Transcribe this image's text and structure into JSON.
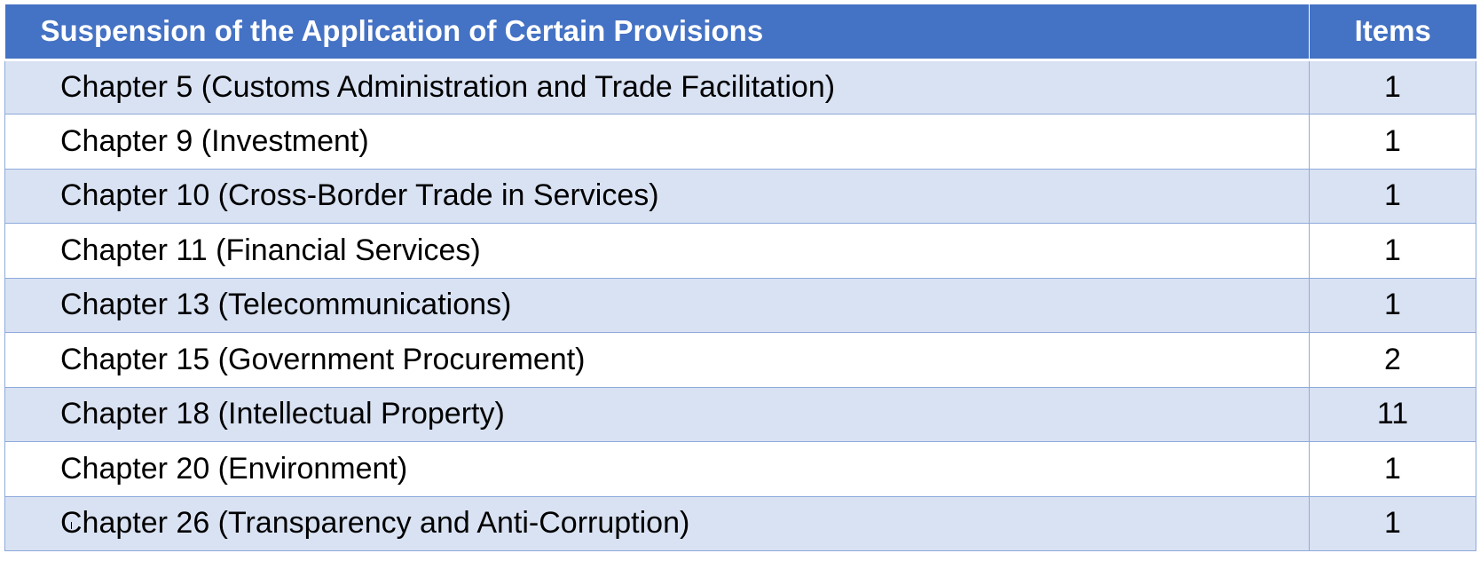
{
  "table": {
    "header": {
      "title": "Suspension of the Application of Certain Provisions",
      "items": "Items"
    },
    "rows": [
      {
        "chapter": "Chapter 5 (Customs Administration and Trade Facilitation)",
        "items": "1"
      },
      {
        "chapter": "Chapter 9 (Investment)",
        "items": "1"
      },
      {
        "chapter": "Chapter 10 (Cross-Border Trade in Services)",
        "items": "1"
      },
      {
        "chapter": "Chapter 11 (Financial Services)",
        "items": "1"
      },
      {
        "chapter": "Chapter 13 (Telecommunications)",
        "items": "1"
      },
      {
        "chapter": "Chapter 15 (Government Procurement)",
        "items": "2"
      },
      {
        "chapter": "Chapter 18 (Intellectual Property)",
        "items": "11"
      },
      {
        "chapter": "Chapter 20 (Environment)",
        "items": "1"
      },
      {
        "chapter": "Chapter 26 (Transparency and Anti-Corruption)",
        "items": "1"
      }
    ]
  },
  "colors": {
    "header_bg": "#4472c4",
    "band_bg": "#d9e2f3",
    "border": "#8eaadb"
  }
}
